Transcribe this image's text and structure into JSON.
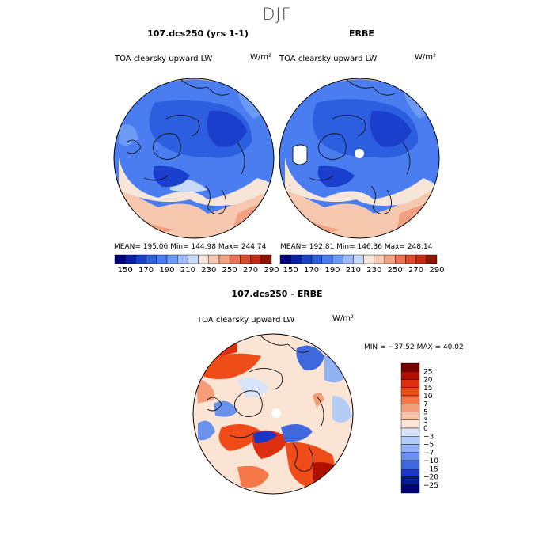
{
  "season": "DJF",
  "panels": {
    "model": {
      "title": "107.dcs250 (yrs 1-1)",
      "field": "TOA clearsky upward LW",
      "units": "W/m²",
      "stats": "MEAN= 195.06   Min= 144.98   Max= 244.74"
    },
    "obs": {
      "title": "ERBE",
      "field": "TOA clearsky upward LW",
      "units": "W/m²",
      "stats": "MEAN= 192.81   Min= 146.36   Max= 248.14"
    },
    "diff": {
      "title": "107.dcs250 - ERBE",
      "field": "TOA clearsky upward LW",
      "units": "W/m²",
      "stats": "MIN = −37.52  MAX =  40.02"
    }
  },
  "chart_data": [
    {
      "type": "heatmap",
      "title": "107.dcs250 (yrs 1-1)",
      "subtitle": "TOA clearsky upward LW",
      "units": "W/m2",
      "projection": "north polar stereographic",
      "mean": 195.06,
      "min": 144.98,
      "max": 244.74,
      "colorbar_levels": [
        150,
        160,
        170,
        180,
        190,
        200,
        210,
        220,
        230,
        240,
        250,
        260,
        270,
        280,
        290
      ],
      "colorbar_labels": [
        "150",
        "170",
        "190",
        "210",
        "230",
        "250",
        "270",
        "290"
      ]
    },
    {
      "type": "heatmap",
      "title": "ERBE",
      "subtitle": "TOA clearsky upward LW",
      "units": "W/m2",
      "projection": "north polar stereographic",
      "mean": 192.81,
      "min": 146.36,
      "max": 248.14,
      "colorbar_levels": [
        150,
        160,
        170,
        180,
        190,
        200,
        210,
        220,
        230,
        240,
        250,
        260,
        270,
        280,
        290
      ],
      "colorbar_labels": [
        "150",
        "170",
        "190",
        "210",
        "230",
        "250",
        "270",
        "290"
      ]
    },
    {
      "type": "heatmap",
      "title": "107.dcs250 - ERBE",
      "subtitle": "TOA clearsky upward LW",
      "units": "W/m2",
      "projection": "north polar stereographic",
      "min": -37.52,
      "max": 40.02,
      "colorbar_levels": [
        -25,
        -20,
        -15,
        -10,
        -7,
        -5,
        -3,
        0,
        3,
        5,
        7,
        10,
        15,
        20,
        25
      ],
      "colorbar_labels": [
        "25",
        "20",
        "15",
        "10",
        "7",
        "5",
        "3",
        "0",
        "−3",
        "−5",
        "−7",
        "−10",
        "−15",
        "−20",
        "−25"
      ]
    }
  ],
  "colors": {
    "abs_scale": [
      "#00007a",
      "#0a1fa8",
      "#1a3fcc",
      "#2c5fe0",
      "#4a7ef0",
      "#6b99f4",
      "#9ab8f6",
      "#c8d8f8",
      "#f6e6da",
      "#f6c8b0",
      "#f2a082",
      "#ea7456",
      "#de4a2c",
      "#c42a12",
      "#8a1406"
    ],
    "diff_scale": [
      "#7a0000",
      "#b01000",
      "#dd3010",
      "#f04c1a",
      "#f47848",
      "#f59c78",
      "#f7c2a4",
      "#fbe4d4",
      "#d8e4fa",
      "#b4cdf6",
      "#8fb1f2",
      "#6a92ec",
      "#3f68df",
      "#1a36c4",
      "#001a94",
      "#000078"
    ]
  }
}
